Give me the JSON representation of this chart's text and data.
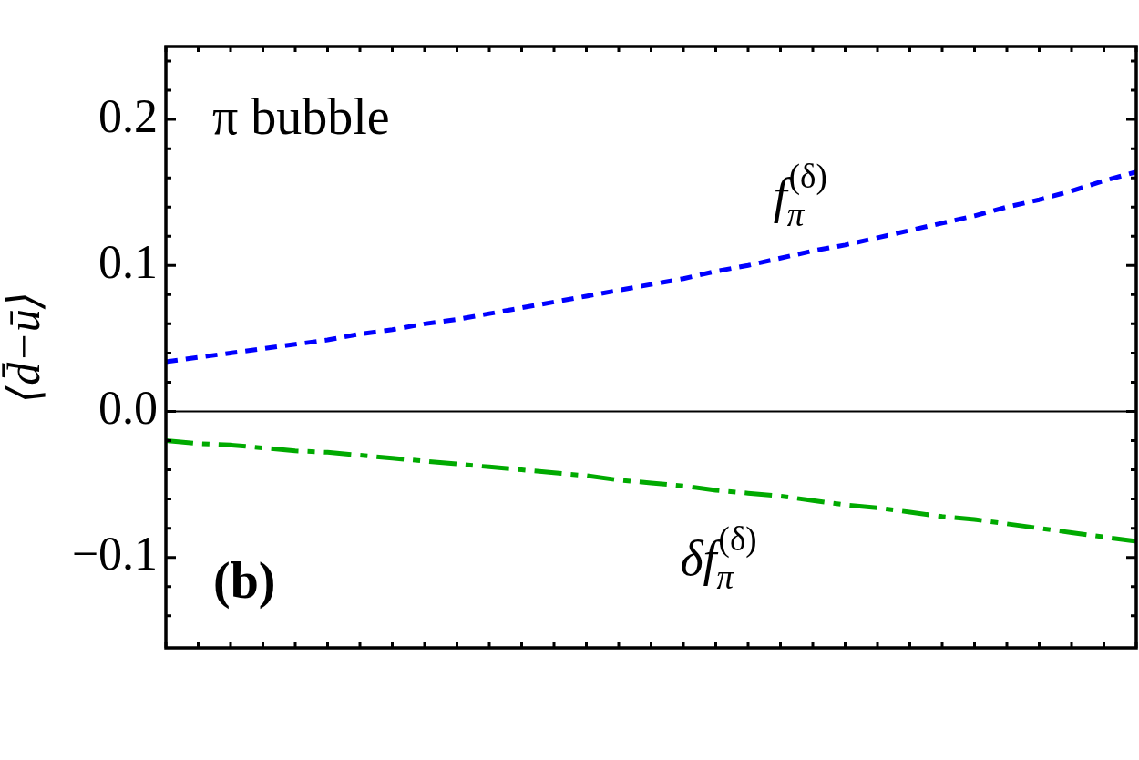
{
  "chart_data": {
    "type": "line",
    "ylabel": "⟨d̄−ū⟩",
    "categories": [
      null,
      null,
      null,
      null,
      null,
      null,
      null,
      null,
      null,
      null,
      null,
      null,
      null,
      null,
      null,
      null,
      null,
      null,
      null,
      null,
      null,
      null,
      null,
      null,
      null,
      null,
      null,
      null,
      null,
      null,
      null
    ],
    "series": [
      {
        "name": "f$_{π}$$^{(δ)}$",
        "color": "#0000ff",
        "line_style": "dotted",
        "values": [
          0.034,
          0.037,
          0.04,
          0.043,
          0.046,
          0.049,
          0.053,
          0.056,
          0.06,
          0.063,
          0.067,
          0.071,
          0.075,
          0.079,
          0.083,
          0.087,
          0.091,
          0.096,
          0.1,
          0.105,
          0.11,
          0.114,
          0.119,
          0.124,
          0.129,
          0.134,
          0.14,
          0.145,
          0.151,
          0.158,
          0.164
        ]
      },
      {
        "name": "δf$_{π}$$^{(δ)}$",
        "color": "#00aa00",
        "line_style": "dashdot",
        "values": [
          -0.02,
          -0.022,
          -0.023,
          -0.025,
          -0.027,
          -0.028,
          -0.03,
          -0.032,
          -0.034,
          -0.036,
          -0.038,
          -0.04,
          -0.042,
          -0.044,
          -0.047,
          -0.049,
          -0.051,
          -0.054,
          -0.056,
          -0.058,
          -0.061,
          -0.064,
          -0.066,
          -0.069,
          -0.072,
          -0.074,
          -0.077,
          -0.08,
          -0.083,
          -0.086,
          -0.089
        ]
      }
    ],
    "ylim": [
      -0.162,
      0.25
    ],
    "yticks": [
      {
        "value": -0.14,
        "label": null
      },
      {
        "value": -0.12,
        "label": null
      },
      {
        "value": -0.1,
        "label": "−0.1"
      },
      {
        "value": -0.08,
        "label": null
      },
      {
        "value": -0.06,
        "label": null
      },
      {
        "value": -0.04,
        "label": null
      },
      {
        "value": -0.02,
        "label": null
      },
      {
        "value": 0,
        "label": "0.0"
      },
      {
        "value": 0.02,
        "label": null
      },
      {
        "value": 0.04,
        "label": null
      },
      {
        "value": 0.06,
        "label": null
      },
      {
        "value": 0.08,
        "label": null
      },
      0.1,
      {
        "value": 0.12,
        "label": null
      },
      {
        "value": 0.14,
        "label": null
      },
      {
        "value": 0.16,
        "label": null
      },
      {
        "value": 0.18,
        "label": null
      },
      0.2,
      {
        "value": 0.22,
        "label": null
      },
      {
        "value": 0.24,
        "label": null
      }
    ],
    "ref_lines": [
      {
        "axis": "y",
        "value": 0,
        "color": "#000000"
      }
    ],
    "tick_labels": "y",
    "annotations": [
      "π bubble",
      "(b)"
    ]
  }
}
